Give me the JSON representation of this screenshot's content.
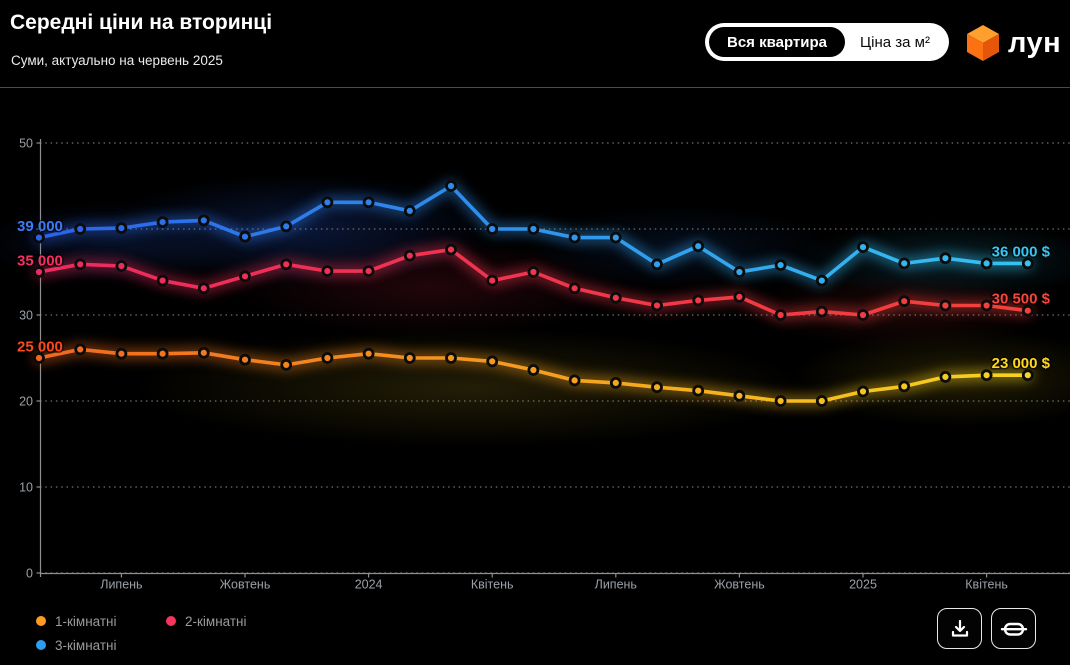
{
  "header": {
    "title": "Середні ціни на вторинці",
    "subtitle": "Суми, актуально на червень 2025"
  },
  "toggle": {
    "options": [
      {
        "label": "Вся квартира",
        "selected": true
      },
      {
        "label": "Ціна за м²",
        "selected": false
      }
    ]
  },
  "logo": {
    "text": "лун"
  },
  "legend": {
    "items": [
      {
        "label": "1-кімнатні",
        "dot_color": "#FF9A25"
      },
      {
        "label": "2-кімнатні",
        "dot_color": "#F4355C"
      },
      {
        "label": "3-кімнатні",
        "dot_color": "#2F9EF0"
      }
    ]
  },
  "chart_data": {
    "type": "line",
    "title": "Середні ціни на вторинці",
    "subtitle": "Суми, актуально на червень 2025",
    "currency": "$",
    "points_count": 25,
    "ylim": [
      0,
      50000
    ],
    "grid": "dotted-horizontal",
    "y_axis": {
      "unit": "thousands of $",
      "ticks": [
        {
          "value": 50000,
          "label": "50"
        },
        {
          "value": 40000,
          "label": ""
        },
        {
          "value": 30000,
          "label": "30"
        },
        {
          "value": 20000,
          "label": "20"
        },
        {
          "value": 10000,
          "label": "10"
        },
        {
          "value": 0,
          "label": "0"
        }
      ]
    },
    "x_axis": {
      "labels": [
        {
          "text": "Липень",
          "point_index": 2
        },
        {
          "text": "Жовтень",
          "point_index": 5
        },
        {
          "text": "2024",
          "point_index": 8
        },
        {
          "text": "Квітень",
          "point_index": 11
        },
        {
          "text": "Липень",
          "point_index": 14
        },
        {
          "text": "Жовтень",
          "point_index": 17
        },
        {
          "text": "2025",
          "point_index": 20
        },
        {
          "text": "Квітень",
          "point_index": 23
        }
      ]
    },
    "series": [
      {
        "key": "one-room",
        "name": "1-кімнатні",
        "color_start": "#F2671F",
        "color_end": "#F7D51F",
        "start_label": "25 000",
        "start_label_color": "#FA4A1C",
        "end_label": "23 000 $",
        "end_label_color": "#FFD81F",
        "values": [
          25000,
          26000,
          25500,
          25500,
          25600,
          24800,
          24200,
          25000,
          25500,
          25000,
          25000,
          24600,
          23600,
          22400,
          22100,
          21600,
          21200,
          20600,
          20000,
          20000,
          21100,
          21700,
          22800,
          23000,
          23000
        ]
      },
      {
        "key": "two-room",
        "name": "2-кімнатні",
        "color_start": "#EE2A60",
        "color_end": "#F2413A",
        "start_label": "35 000",
        "start_label_color": "#F43061",
        "end_label": "30 500 $",
        "end_label_color": "#F6453C",
        "values": [
          35000,
          35900,
          35700,
          34000,
          33100,
          34500,
          35900,
          35100,
          35100,
          36900,
          37600,
          34000,
          35000,
          33100,
          32000,
          31100,
          31700,
          32100,
          30000,
          30400,
          30000,
          31600,
          31100,
          31100,
          30500
        ]
      },
      {
        "key": "three-room",
        "name": "3-кімнатні",
        "color_start": "#2B63E8",
        "color_end": "#35C3F0",
        "start_label": "39 000",
        "start_label_color": "#3C7BF7",
        "end_label": "36 000 $",
        "end_label_color": "#38C6F4",
        "values": [
          39000,
          40000,
          40100,
          40800,
          41000,
          39100,
          40300,
          43100,
          43100,
          42100,
          45000,
          40000,
          40000,
          39000,
          39000,
          35900,
          38000,
          35000,
          35800,
          34000,
          37900,
          36000,
          36600,
          36000,
          36000
        ]
      }
    ]
  }
}
